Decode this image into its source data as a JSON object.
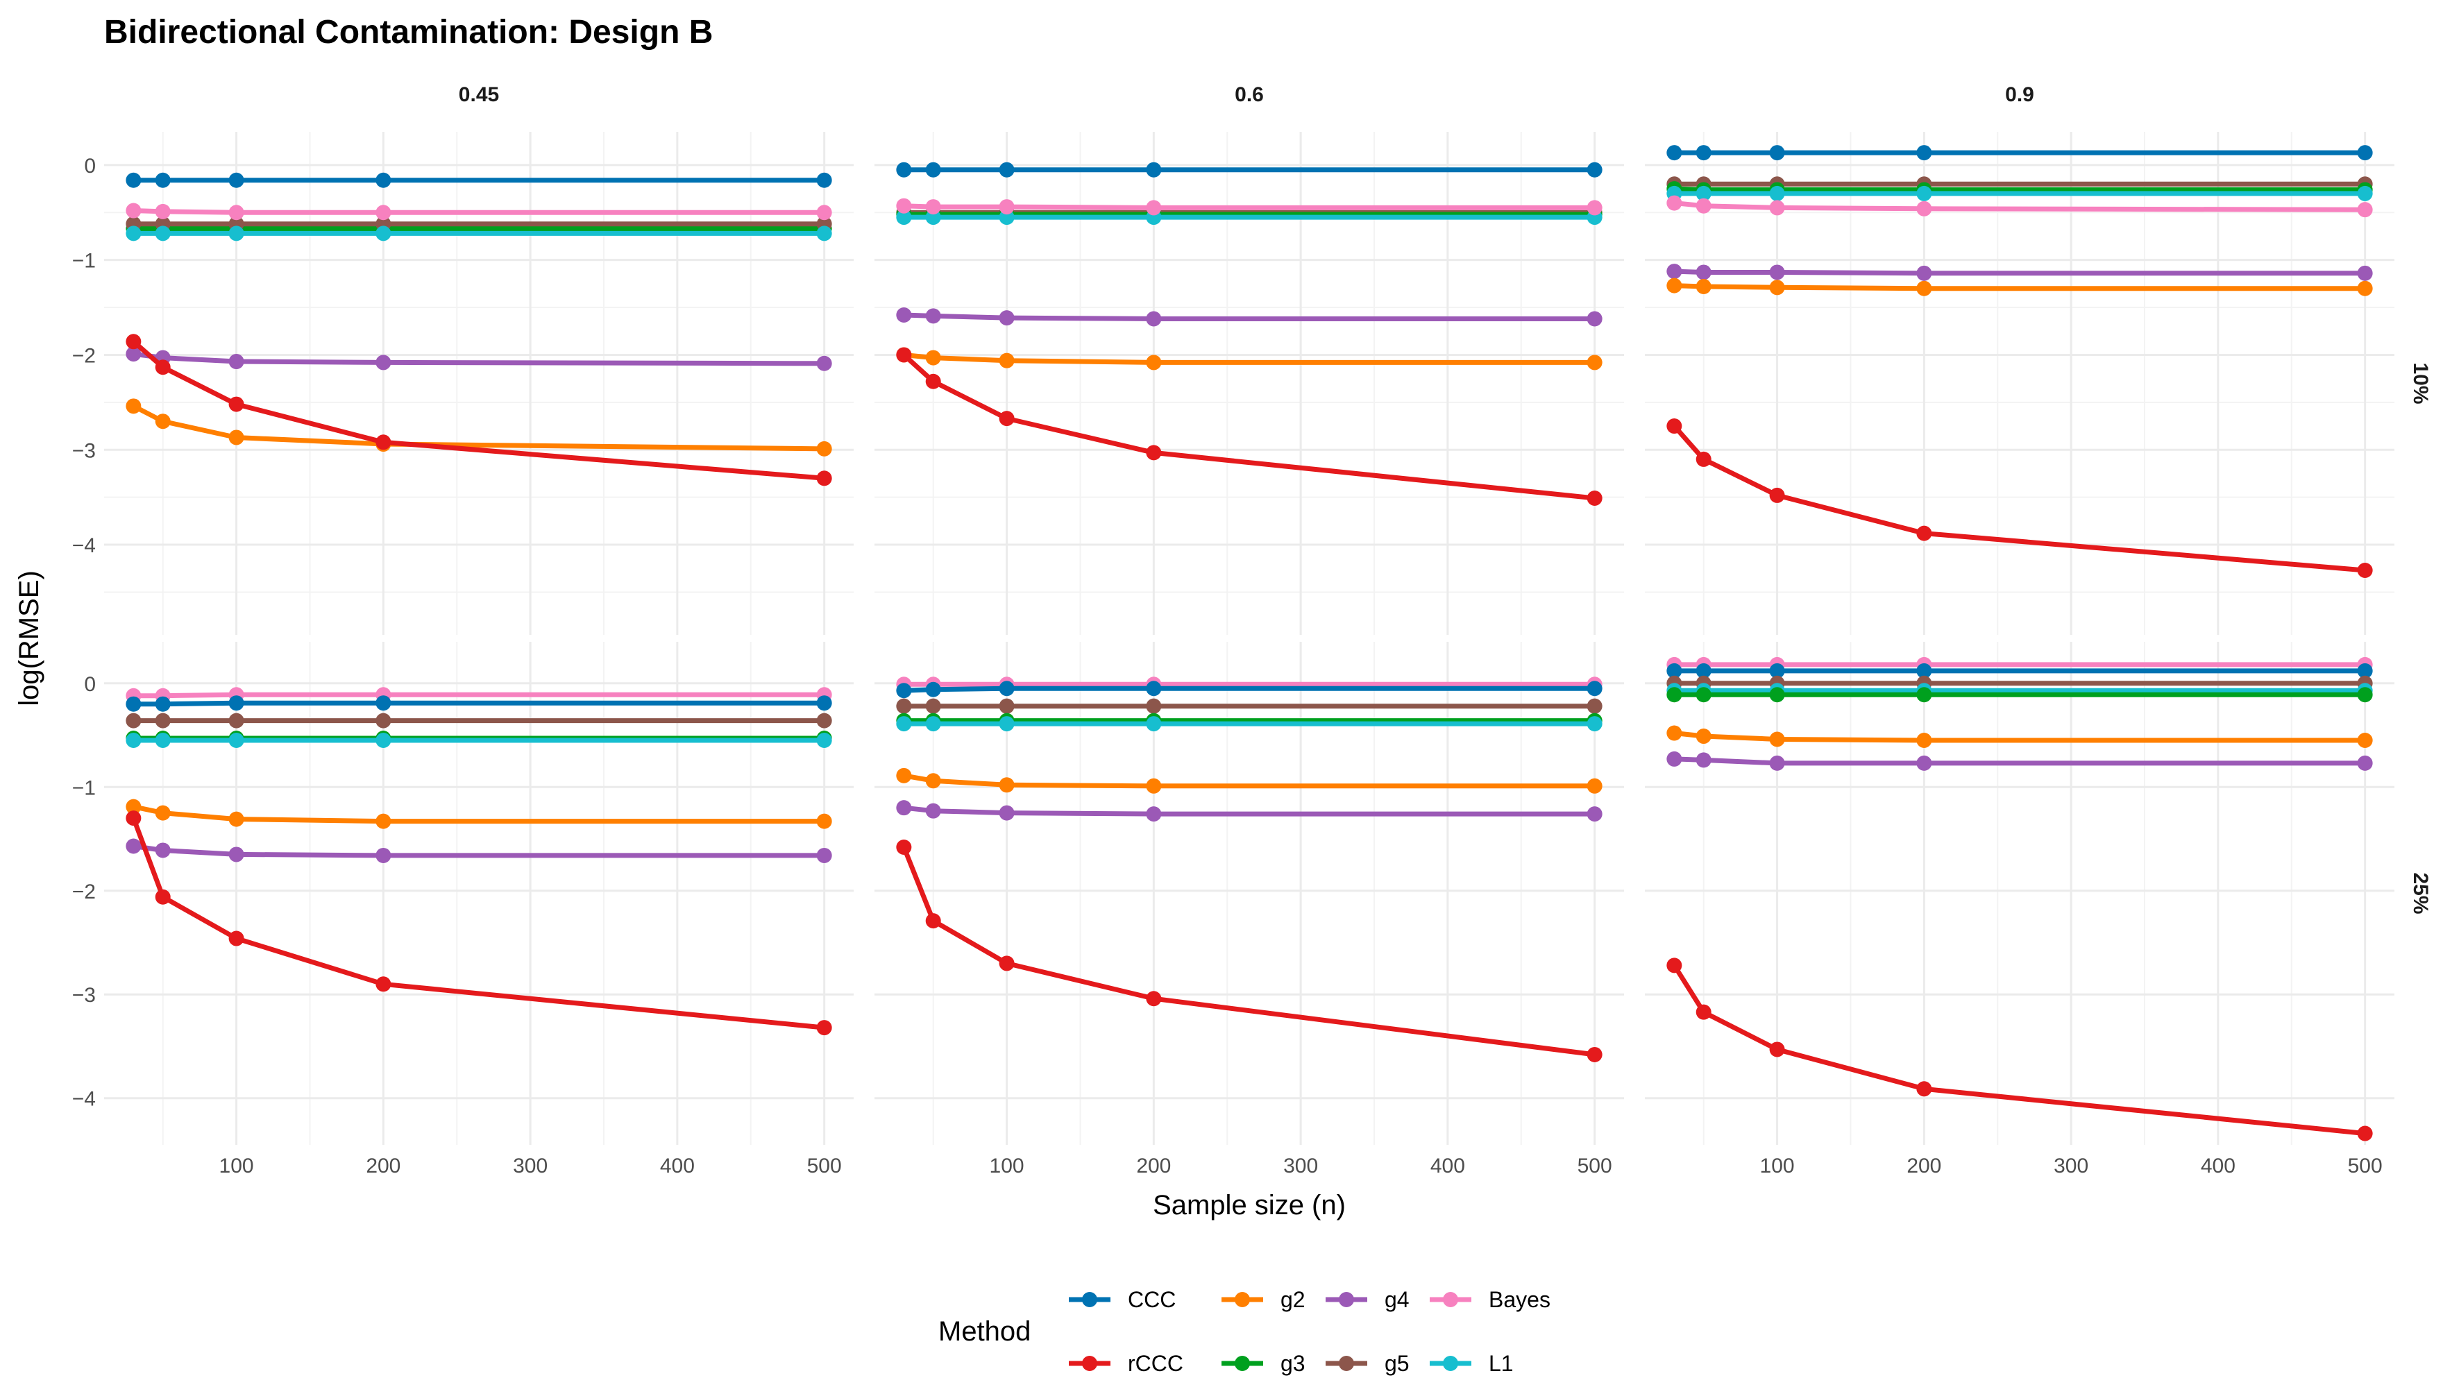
{
  "chart_data": {
    "type": "line",
    "title": "Bidirectional Contamination: Design B",
    "xlabel": "Sample size (n)",
    "ylabel": "log(RMSE)",
    "x": [
      30,
      50,
      100,
      200,
      500
    ],
    "xticks": [
      100,
      200,
      300,
      400,
      500
    ],
    "xticklabels": [
      "100",
      "200",
      "300",
      "400",
      "500"
    ],
    "xlim": [
      10,
      520
    ],
    "rows": [
      {
        "label": "10%",
        "ylim": [
          -4.95,
          0.35
        ],
        "yticks": [
          0,
          -1,
          -2,
          -3,
          -4
        ],
        "yticklabels": [
          "0",
          "−1",
          "−2",
          "−3",
          "−4"
        ]
      },
      {
        "label": "25%",
        "ylim": [
          -4.45,
          0.4
        ],
        "yticks": [
          0,
          -1,
          -2,
          -3,
          -4
        ],
        "yticklabels": [
          "0",
          "−1",
          "−2",
          "−3",
          "−4"
        ]
      }
    ],
    "columns": [
      "0.45",
      "0.6",
      "0.9"
    ],
    "legend": {
      "title": "Method",
      "position": "bottom"
    },
    "series_colors": {
      "CCC": "#0072B2",
      "rCCC": "#E41A1C",
      "g2": "#FF7F00",
      "g3": "#00A01E",
      "g4": "#9B59B6",
      "g5": "#8C564B",
      "Bayes": "#F781BF",
      "L1": "#17BECF"
    },
    "legend_entries": [
      "CCC",
      "g2",
      "g4",
      "Bayes",
      "rCCC",
      "g3",
      "g5",
      "L1"
    ],
    "panels": [
      {
        "row": 0,
        "col": 0,
        "series": [
          {
            "name": "CCC",
            "values": [
              -0.16,
              -0.16,
              -0.16,
              -0.16,
              -0.16
            ]
          },
          {
            "name": "g3",
            "values": [
              -0.67,
              -0.67,
              -0.67,
              -0.67,
              -0.67
            ]
          },
          {
            "name": "g5",
            "values": [
              -0.62,
              -0.62,
              -0.62,
              -0.62,
              -0.62
            ]
          },
          {
            "name": "L1",
            "values": [
              -0.72,
              -0.72,
              -0.72,
              -0.72,
              -0.72
            ]
          },
          {
            "name": "Bayes",
            "values": [
              -0.48,
              -0.49,
              -0.5,
              -0.5,
              -0.5
            ]
          },
          {
            "name": "g4",
            "values": [
              -1.99,
              -2.03,
              -2.07,
              -2.08,
              -2.09
            ]
          },
          {
            "name": "g2",
            "values": [
              -2.54,
              -2.7,
              -2.87,
              -2.94,
              -2.99
            ]
          },
          {
            "name": "rCCC",
            "values": [
              -1.86,
              -2.13,
              -2.52,
              -2.92,
              -3.3
            ]
          }
        ]
      },
      {
        "row": 0,
        "col": 1,
        "series": [
          {
            "name": "CCC",
            "values": [
              -0.05,
              -0.05,
              -0.05,
              -0.05,
              -0.05
            ]
          },
          {
            "name": "g5",
            "values": [
              -0.5,
              -0.5,
              -0.5,
              -0.5,
              -0.5
            ]
          },
          {
            "name": "g3",
            "values": [
              -0.52,
              -0.52,
              -0.52,
              -0.52,
              -0.52
            ]
          },
          {
            "name": "L1",
            "values": [
              -0.55,
              -0.55,
              -0.55,
              -0.55,
              -0.55
            ]
          },
          {
            "name": "Bayes",
            "values": [
              -0.43,
              -0.44,
              -0.44,
              -0.45,
              -0.45
            ]
          },
          {
            "name": "g4",
            "values": [
              -1.58,
              -1.59,
              -1.61,
              -1.62,
              -1.62
            ]
          },
          {
            "name": "g2",
            "values": [
              -2.0,
              -2.03,
              -2.06,
              -2.08,
              -2.08
            ]
          },
          {
            "name": "rCCC",
            "values": [
              -2.0,
              -2.28,
              -2.67,
              -3.03,
              -3.51
            ]
          }
        ]
      },
      {
        "row": 0,
        "col": 2,
        "series": [
          {
            "name": "CCC",
            "values": [
              0.13,
              0.13,
              0.13,
              0.13,
              0.13
            ]
          },
          {
            "name": "g5",
            "values": [
              -0.2,
              -0.2,
              -0.2,
              -0.2,
              -0.2
            ]
          },
          {
            "name": "g3",
            "values": [
              -0.25,
              -0.26,
              -0.26,
              -0.26,
              -0.26
            ]
          },
          {
            "name": "L1",
            "values": [
              -0.3,
              -0.3,
              -0.3,
              -0.3,
              -0.3
            ]
          },
          {
            "name": "Bayes",
            "values": [
              -0.4,
              -0.43,
              -0.45,
              -0.46,
              -0.47
            ]
          },
          {
            "name": "g4",
            "values": [
              -1.12,
              -1.13,
              -1.13,
              -1.14,
              -1.14
            ]
          },
          {
            "name": "g2",
            "values": [
              -1.27,
              -1.28,
              -1.29,
              -1.3,
              -1.3
            ]
          },
          {
            "name": "rCCC",
            "values": [
              -2.75,
              -3.1,
              -3.48,
              -3.88,
              -4.27
            ]
          }
        ]
      },
      {
        "row": 1,
        "col": 0,
        "series": [
          {
            "name": "Bayes",
            "values": [
              -0.12,
              -0.12,
              -0.11,
              -0.11,
              -0.11
            ]
          },
          {
            "name": "CCC",
            "values": [
              -0.2,
              -0.2,
              -0.19,
              -0.19,
              -0.19
            ]
          },
          {
            "name": "g5",
            "values": [
              -0.36,
              -0.36,
              -0.36,
              -0.36,
              -0.36
            ]
          },
          {
            "name": "g3",
            "values": [
              -0.53,
              -0.53,
              -0.53,
              -0.53,
              -0.53
            ]
          },
          {
            "name": "L1",
            "values": [
              -0.55,
              -0.55,
              -0.55,
              -0.55,
              -0.55
            ]
          },
          {
            "name": "g2",
            "values": [
              -1.19,
              -1.25,
              -1.31,
              -1.33,
              -1.33
            ]
          },
          {
            "name": "g4",
            "values": [
              -1.57,
              -1.61,
              -1.65,
              -1.66,
              -1.66
            ]
          },
          {
            "name": "rCCC",
            "values": [
              -1.3,
              -2.06,
              -2.46,
              -2.9,
              -3.32
            ]
          }
        ]
      },
      {
        "row": 1,
        "col": 1,
        "series": [
          {
            "name": "Bayes",
            "values": [
              -0.01,
              -0.01,
              -0.01,
              -0.01,
              -0.01
            ]
          },
          {
            "name": "CCC",
            "values": [
              -0.07,
              -0.06,
              -0.05,
              -0.05,
              -0.05
            ]
          },
          {
            "name": "g5",
            "values": [
              -0.22,
              -0.22,
              -0.22,
              -0.22,
              -0.22
            ]
          },
          {
            "name": "g3",
            "values": [
              -0.36,
              -0.36,
              -0.36,
              -0.36,
              -0.36
            ]
          },
          {
            "name": "L1",
            "values": [
              -0.39,
              -0.39,
              -0.39,
              -0.39,
              -0.39
            ]
          },
          {
            "name": "g2",
            "values": [
              -0.89,
              -0.94,
              -0.98,
              -0.99,
              -0.99
            ]
          },
          {
            "name": "g4",
            "values": [
              -1.2,
              -1.23,
              -1.25,
              -1.26,
              -1.26
            ]
          },
          {
            "name": "rCCC",
            "values": [
              -1.58,
              -2.29,
              -2.7,
              -3.04,
              -3.58
            ]
          }
        ]
      },
      {
        "row": 1,
        "col": 2,
        "series": [
          {
            "name": "Bayes",
            "values": [
              0.18,
              0.18,
              0.18,
              0.18,
              0.18
            ]
          },
          {
            "name": "CCC",
            "values": [
              0.12,
              0.12,
              0.12,
              0.12,
              0.12
            ]
          },
          {
            "name": "g5",
            "values": [
              0.0,
              0.0,
              0.0,
              0.0,
              0.0
            ]
          },
          {
            "name": "L1",
            "values": [
              -0.07,
              -0.07,
              -0.07,
              -0.07,
              -0.07
            ]
          },
          {
            "name": "g3",
            "values": [
              -0.11,
              -0.11,
              -0.11,
              -0.11,
              -0.11
            ]
          },
          {
            "name": "g2",
            "values": [
              -0.48,
              -0.51,
              -0.54,
              -0.55,
              -0.55
            ]
          },
          {
            "name": "g4",
            "values": [
              -0.73,
              -0.74,
              -0.77,
              -0.77,
              -0.77
            ]
          },
          {
            "name": "rCCC",
            "values": [
              -2.72,
              -3.17,
              -3.53,
              -3.91,
              -4.34
            ]
          }
        ]
      }
    ]
  }
}
